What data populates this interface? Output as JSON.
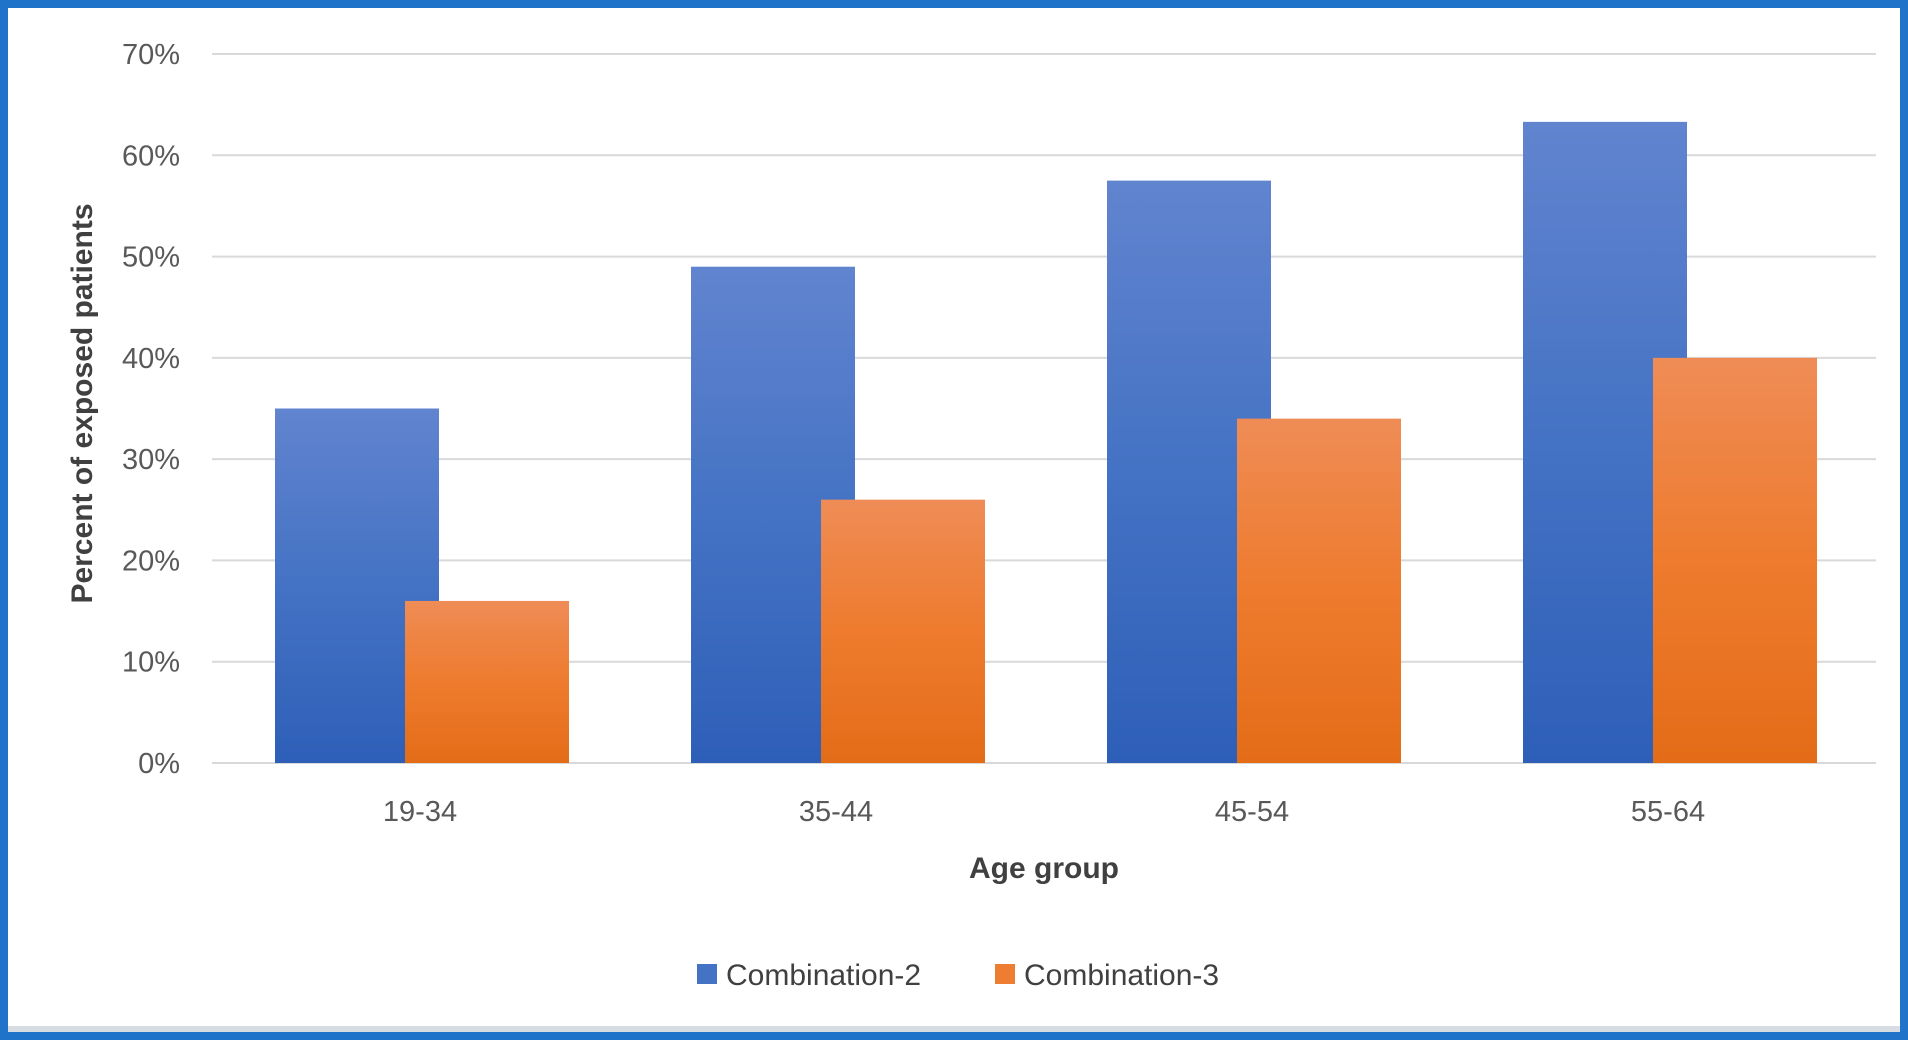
{
  "chart_data": {
    "type": "bar",
    "title": "",
    "xlabel": "Age group",
    "ylabel": "Percent of exposed patients",
    "categories": [
      "19-34",
      "35-44",
      "45-54",
      "55-64"
    ],
    "series": [
      {
        "name": "Combination-2",
        "values": [
          35,
          49,
          57.5,
          63.3
        ],
        "color": "#4472c4"
      },
      {
        "name": "Combination-3",
        "values": [
          16,
          26,
          34,
          40
        ],
        "color": "#ed7d31"
      }
    ],
    "ylim": [
      0,
      70
    ],
    "yticks": [
      0,
      10,
      20,
      30,
      40,
      50,
      60,
      70
    ],
    "ytick_labels": [
      "0%",
      "10%",
      "20%",
      "30%",
      "40%",
      "50%",
      "60%",
      "70%"
    ],
    "grid": true,
    "legend_position": "bottom"
  },
  "colors": {
    "frame_border": "#1f74c9",
    "gridline": "#d9d9d9"
  }
}
